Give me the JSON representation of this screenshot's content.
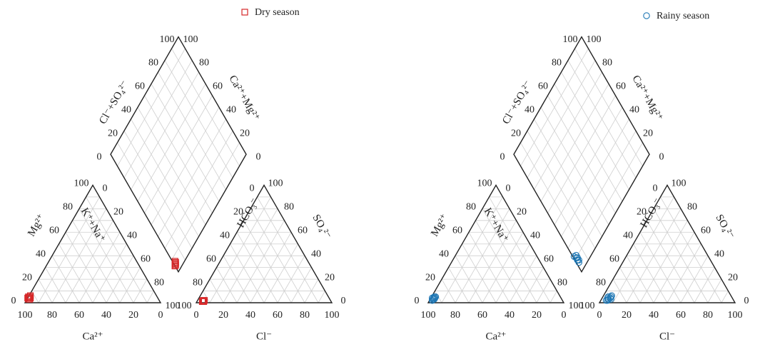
{
  "chart_data": [
    {
      "type": "scatter",
      "subtype": "piper-diagram",
      "legend": {
        "label": "Dry season",
        "marker": "square",
        "color": "#d62728",
        "placement": "top-right"
      },
      "cation_axes": {
        "bottom": "Ca²⁺",
        "left": "Mg²⁺",
        "right": "K⁺+Na⁺"
      },
      "anion_axes": {
        "bottom": "Cl⁻",
        "left": "HCO₃⁻",
        "right": "SO₄²⁻"
      },
      "diamond_axes": {
        "upper_left": "Cl⁻+SO₄²⁻",
        "upper_right": "Ca²⁺+Mg²⁺"
      },
      "cation_ticks": {
        "ca": [
          "100",
          "80",
          "60",
          "40",
          "20",
          "0"
        ],
        "mg": [
          "0",
          "20",
          "40",
          "60",
          "80",
          "100"
        ],
        "kna": [
          "0",
          "20",
          "40",
          "60",
          "80",
          "100"
        ]
      },
      "anion_ticks": {
        "cl": [
          "0",
          "20",
          "40",
          "60",
          "80",
          "100"
        ],
        "hco3": [
          "100",
          "80",
          "60",
          "40",
          "20",
          "0"
        ],
        "so4": [
          "100",
          "80",
          "60",
          "40",
          "20",
          "0"
        ]
      },
      "diamond_ticks": {
        "upper_left_low": [
          "0",
          "20",
          "40",
          "60",
          "80",
          "100"
        ],
        "upper_right_high": [
          "100",
          "80",
          "60",
          "40",
          "20",
          "0"
        ],
        "upper_left_high": [
          "100",
          "80",
          "60",
          "40",
          "20",
          "0"
        ],
        "upper_right_low": [
          "0",
          "20",
          "40",
          "60",
          "80",
          "100"
        ]
      },
      "samples": [
        {
          "ca": 96,
          "mg": 3,
          "cl": 4,
          "so4": 1
        },
        {
          "ca": 95,
          "mg": 4,
          "cl": 5,
          "so4": 1
        },
        {
          "ca": 94,
          "mg": 5,
          "cl": 4,
          "so4": 2
        },
        {
          "ca": 95,
          "mg": 3,
          "cl": 5,
          "so4": 1
        },
        {
          "ca": 96,
          "mg": 4,
          "cl": 4,
          "so4": 1
        },
        {
          "ca": 94,
          "mg": 4,
          "cl": 5,
          "so4": 2
        },
        {
          "ca": 95,
          "mg": 5,
          "cl": 4,
          "so4": 1
        },
        {
          "ca": 93,
          "mg": 6,
          "cl": 5,
          "so4": 1
        }
      ]
    },
    {
      "type": "scatter",
      "subtype": "piper-diagram",
      "legend": {
        "label": "Rainy season",
        "marker": "circle",
        "color": "#1f77b4",
        "placement": "top-right"
      },
      "cation_axes": {
        "bottom": "Ca²⁺",
        "left": "Mg²⁺",
        "right": "K⁺+Na⁺"
      },
      "anion_axes": {
        "bottom": "Cl⁻",
        "left": "HCO₃⁻",
        "right": "SO₄²⁻"
      },
      "diamond_axes": {
        "upper_left": "Cl⁻+SO₄²⁻",
        "upper_right": "Ca²⁺+Mg²⁺"
      },
      "cation_ticks": {
        "ca": [
          "100",
          "80",
          "60",
          "40",
          "20",
          "0"
        ],
        "mg": [
          "0",
          "20",
          "40",
          "60",
          "80",
          "100"
        ],
        "kna": [
          "0",
          "20",
          "40",
          "60",
          "80",
          "100"
        ]
      },
      "anion_ticks": {
        "cl": [
          "0",
          "20",
          "40",
          "60",
          "80",
          "100"
        ],
        "hco3": [
          "100",
          "80",
          "60",
          "40",
          "20",
          "0"
        ],
        "so4": [
          "100",
          "80",
          "60",
          "40",
          "20",
          "0"
        ]
      },
      "diamond_ticks": {
        "upper_left_low": [
          "0",
          "20",
          "40",
          "60",
          "80",
          "100"
        ],
        "upper_right_high": [
          "100",
          "80",
          "60",
          "40",
          "20",
          "0"
        ],
        "upper_left_high": [
          "100",
          "80",
          "60",
          "40",
          "20",
          "0"
        ],
        "upper_right_low": [
          "0",
          "20",
          "40",
          "60",
          "80",
          "100"
        ]
      },
      "samples": [
        {
          "ca": 95,
          "mg": 3,
          "cl": 4,
          "so4": 2
        },
        {
          "ca": 94,
          "mg": 4,
          "cl": 5,
          "so4": 3
        },
        {
          "ca": 96,
          "mg": 2,
          "cl": 6,
          "so4": 4
        },
        {
          "ca": 93,
          "mg": 4,
          "cl": 4,
          "so4": 5
        },
        {
          "ca": 95,
          "mg": 3,
          "cl": 7,
          "so4": 3
        },
        {
          "ca": 92,
          "mg": 5,
          "cl": 5,
          "so4": 2
        },
        {
          "ca": 94,
          "mg": 3,
          "cl": 6,
          "so4": 5
        },
        {
          "ca": 96,
          "mg": 2,
          "cl": 5,
          "so4": 3
        },
        {
          "ca": 93,
          "mg": 5,
          "cl": 4,
          "so4": 4
        },
        {
          "ca": 95,
          "mg": 4,
          "cl": 6,
          "so4": 6
        }
      ]
    }
  ]
}
